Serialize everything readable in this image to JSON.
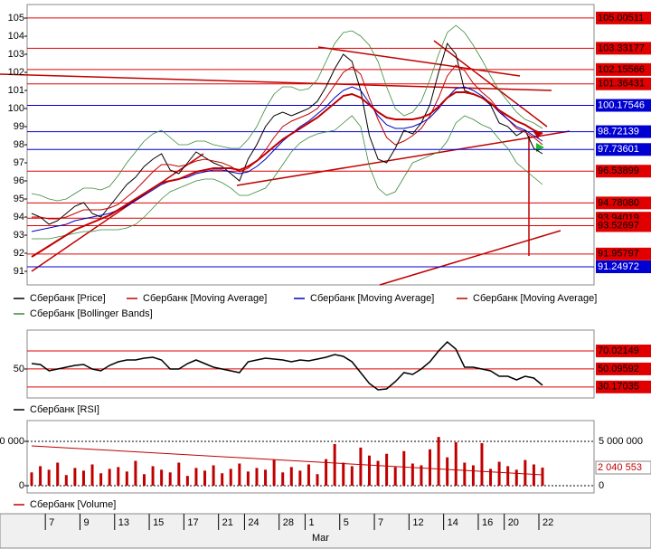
{
  "chart_data": [
    {
      "type": "line",
      "categories": [
        null,
        null,
        null,
        null,
        null,
        null,
        null,
        null,
        null,
        null,
        null,
        null,
        null,
        null,
        null,
        null,
        null,
        null,
        null,
        null,
        null,
        null,
        null,
        null,
        null,
        null,
        null,
        null,
        null,
        null,
        null,
        null,
        null,
        null,
        null,
        null,
        null,
        null,
        null,
        null,
        null,
        null,
        null,
        null,
        null,
        null,
        null,
        null,
        null,
        null,
        null,
        null,
        null,
        null,
        null,
        null,
        null,
        null,
        null,
        null
      ],
      "ylim": [
        90.25,
        105.75
      ],
      "yticks": [
        91,
        92,
        93,
        94,
        95,
        96,
        97,
        98,
        99,
        100,
        101,
        102,
        103,
        104,
        105
      ],
      "xticks": [
        {
          "value": 2,
          "label": "7"
        },
        {
          "value": 6,
          "label": "9"
        },
        {
          "value": 10,
          "label": "13"
        },
        {
          "value": 14,
          "label": "15"
        },
        {
          "value": 18,
          "label": "17"
        },
        {
          "value": 22,
          "label": "21"
        },
        {
          "value": 25,
          "label": "24"
        },
        {
          "value": 29,
          "label": "28"
        },
        {
          "value": 32,
          "label": "1"
        },
        {
          "value": 36,
          "label": "5"
        },
        {
          "value": 40,
          "label": "7"
        },
        {
          "value": 44,
          "label": "12"
        },
        {
          "value": 48,
          "label": "14"
        },
        {
          "value": 52,
          "label": "16"
        },
        {
          "value": 55,
          "label": "20"
        },
        {
          "value": 59,
          "label": "22"
        }
      ],
      "xlabel": "Mar",
      "series": [
        {
          "name": "Сбербанк [Price]",
          "color": "#000000",
          "values": [
            94.2,
            94.0,
            93.6,
            93.8,
            94.2,
            94.6,
            94.8,
            94.2,
            94.0,
            94.6,
            95.2,
            95.8,
            96.2,
            96.8,
            97.2,
            97.5,
            96.6,
            96.4,
            97.0,
            97.6,
            97.3,
            97.0,
            96.8,
            96.4,
            96.0,
            97.2,
            98.0,
            99.0,
            99.6,
            99.8,
            99.6,
            99.8,
            100.0,
            100.4,
            101.2,
            102.2,
            103.0,
            102.6,
            101.0,
            98.5,
            97.2,
            97.0,
            97.8,
            98.8,
            98.6,
            99.2,
            100.2,
            102.0,
            103.6,
            103.0,
            101.0,
            100.8,
            100.6,
            100.2,
            99.2,
            99.0,
            98.5,
            98.8,
            97.8,
            97.5
          ]
        },
        {
          "name": "Сбербанк [Moving Average]",
          "color": "#c00000",
          "values": [
            94.0,
            94.0,
            93.9,
            93.9,
            94.0,
            94.2,
            94.4,
            94.4,
            94.4,
            94.5,
            94.7,
            95.1,
            95.5,
            96.0,
            96.5,
            96.9,
            96.9,
            96.8,
            96.9,
            97.1,
            97.2,
            97.1,
            97.0,
            96.8,
            96.5,
            96.7,
            97.1,
            97.7,
            98.4,
            99.0,
            99.3,
            99.5,
            99.7,
            100.0,
            100.6,
            101.3,
            102.0,
            102.3,
            101.9,
            100.6,
            99.4,
            98.4,
            98.0,
            98.2,
            98.5,
            98.9,
            99.6,
            100.6,
            101.8,
            102.4,
            102.1,
            101.4,
            100.9,
            100.5,
            99.9,
            99.4,
            98.9,
            98.7,
            98.4,
            98.0
          ]
        },
        {
          "name": "Сбербанк [Moving Average]",
          "color": "#0000c0",
          "values": [
            93.2,
            93.3,
            93.4,
            93.5,
            93.6,
            93.8,
            93.9,
            94.0,
            94.1,
            94.2,
            94.4,
            94.6,
            94.9,
            95.2,
            95.5,
            95.8,
            96.0,
            96.1,
            96.2,
            96.4,
            96.5,
            96.6,
            96.6,
            96.5,
            96.4,
            96.5,
            96.8,
            97.2,
            97.7,
            98.2,
            98.6,
            99.0,
            99.3,
            99.7,
            100.1,
            100.6,
            101.0,
            101.2,
            101.0,
            100.3,
            99.6,
            99.1,
            98.9,
            98.9,
            99.0,
            99.2,
            99.5,
            100.0,
            100.6,
            101.1,
            101.2,
            101.0,
            100.7,
            100.3,
            99.8,
            99.4,
            99.0,
            98.8,
            98.5,
            98.2
          ]
        },
        {
          "name": "Сбербанк [Moving Average]",
          "color": "#c00000",
          "width": 2,
          "values": [
            91.8,
            92.1,
            92.4,
            92.7,
            93.0,
            93.3,
            93.5,
            93.7,
            93.9,
            94.1,
            94.4,
            94.7,
            95.0,
            95.3,
            95.6,
            95.9,
            96.0,
            96.1,
            96.3,
            96.5,
            96.6,
            96.7,
            96.7,
            96.7,
            96.6,
            96.8,
            97.1,
            97.5,
            97.9,
            98.3,
            98.6,
            98.9,
            99.2,
            99.5,
            99.9,
            100.3,
            100.7,
            100.8,
            100.6,
            100.2,
            99.8,
            99.5,
            99.4,
            99.4,
            99.4,
            99.5,
            99.7,
            100.1,
            100.6,
            100.9,
            100.9,
            100.8,
            100.6,
            100.3,
            99.9,
            99.6,
            99.3,
            99.1,
            98.8,
            98.6
          ]
        }
      ],
      "bands": {
        "name": "Сбербанк [Bollinger Bands]",
        "color": "#3a8a3a",
        "upper": [
          95.3,
          95.2,
          95.0,
          94.9,
          95.0,
          95.3,
          95.6,
          95.6,
          95.5,
          95.7,
          96.3,
          97.0,
          97.6,
          98.2,
          98.6,
          98.8,
          98.4,
          98.0,
          98.0,
          98.2,
          98.2,
          98.0,
          97.9,
          97.8,
          97.8,
          98.3,
          99.0,
          100.0,
          100.8,
          101.2,
          101.2,
          101.0,
          101.1,
          101.6,
          102.6,
          103.6,
          104.2,
          104.3,
          104.0,
          103.5,
          102.6,
          101.2,
          100.0,
          99.6,
          99.8,
          100.4,
          101.6,
          103.0,
          104.2,
          104.6,
          104.2,
          103.5,
          102.7,
          101.8,
          101.0,
          100.4,
          99.8,
          99.4,
          99.2,
          98.9
        ],
        "lower": [
          92.8,
          92.8,
          92.8,
          92.9,
          93.0,
          93.1,
          93.2,
          93.2,
          93.3,
          93.3,
          93.3,
          93.4,
          93.6,
          94.0,
          94.5,
          95.0,
          95.4,
          95.6,
          95.8,
          96.0,
          96.1,
          96.1,
          95.9,
          95.6,
          95.2,
          95.2,
          95.4,
          95.6,
          96.2,
          96.9,
          97.6,
          98.1,
          98.4,
          98.6,
          98.7,
          98.8,
          99.2,
          99.6,
          99.0,
          96.8,
          95.6,
          95.2,
          95.4,
          96.2,
          97.0,
          97.2,
          97.4,
          97.6,
          98.2,
          99.2,
          99.6,
          99.4,
          99.1,
          98.9,
          98.3,
          97.8,
          97.0,
          96.6,
          96.2,
          95.8
        ]
      },
      "levels": [
        {
          "value": 105.00511,
          "color": "#e00000"
        },
        {
          "value": 103.33177,
          "color": "#e00000"
        },
        {
          "value": 102.15566,
          "color": "#e00000"
        },
        {
          "value": 101.36431,
          "color": "#e00000"
        },
        {
          "value": 100.17546,
          "color": "#0000d0"
        },
        {
          "value": 98.72139,
          "color": "#0000d0"
        },
        {
          "value": 97.73601,
          "color": "#0000d0"
        },
        {
          "value": 96.53899,
          "color": "#e00000"
        },
        {
          "value": 94.7808,
          "label": "94.78080",
          "color": "#e00000"
        },
        {
          "value": 93.94019,
          "color": "#e00000"
        },
        {
          "value": 93.52697,
          "color": "#e00000"
        },
        {
          "value": 91.95797,
          "color": "#e00000"
        },
        {
          "value": 91.24972,
          "color": "#0000d0"
        }
      ]
    },
    {
      "type": "line",
      "ylim": [
        18,
        93
      ],
      "yticks": [
        50
      ],
      "series": [
        {
          "name": "Сбербанк [RSI]",
          "color": "#000000",
          "values": [
            56,
            55,
            48,
            50,
            52,
            54,
            55,
            50,
            48,
            54,
            58,
            60,
            60,
            62,
            63,
            60,
            50,
            50,
            56,
            60,
            56,
            52,
            50,
            48,
            46,
            58,
            60,
            62,
            61,
            60,
            58,
            60,
            59,
            61,
            63,
            66,
            64,
            58,
            46,
            34,
            27,
            28,
            36,
            46,
            44,
            50,
            58,
            70,
            80,
            72,
            52,
            52,
            50,
            48,
            42,
            42,
            38,
            42,
            40,
            32
          ]
        }
      ],
      "levels": [
        {
          "value": 70.02149,
          "color": "#e00000"
        },
        {
          "value": 50.09592,
          "color": "#e00000"
        },
        {
          "value": 30.17035,
          "color": "#e00000"
        }
      ]
    },
    {
      "type": "bar",
      "ylim": [
        -816000,
        7347000
      ],
      "yticks": [
        {
          "value": 5000000,
          "label": "5 000 000"
        },
        0
      ],
      "series": [
        {
          "name": "Сбербанк [Volume]",
          "color": "#c00000",
          "values": [
            1500000,
            2200000,
            1800000,
            2600000,
            1200000,
            2000000,
            1700000,
            2400000,
            1400000,
            1900000,
            2100000,
            1600000,
            2800000,
            1300000,
            2200000,
            1800000,
            1500000,
            2600000,
            1100000,
            2000000,
            1700000,
            2300000,
            1400000,
            1900000,
            2500000,
            1600000,
            2000000,
            1800000,
            2900000,
            1500000,
            2100000,
            1700000,
            2400000,
            1300000,
            3000000,
            4700000,
            2600000,
            2200000,
            4300000,
            3400000,
            2800000,
            3600000,
            2100000,
            3900000,
            2500000,
            2300000,
            4100000,
            5500000,
            3200000,
            4900000,
            2600000,
            2300000,
            4800000,
            1900000,
            2700000,
            2200000,
            1800000,
            2900000,
            2400000,
            2040553
          ]
        }
      ],
      "levels": [
        {
          "value": 2040553,
          "label": "2 040 553",
          "color": "#ffffff"
        }
      ]
    }
  ]
}
